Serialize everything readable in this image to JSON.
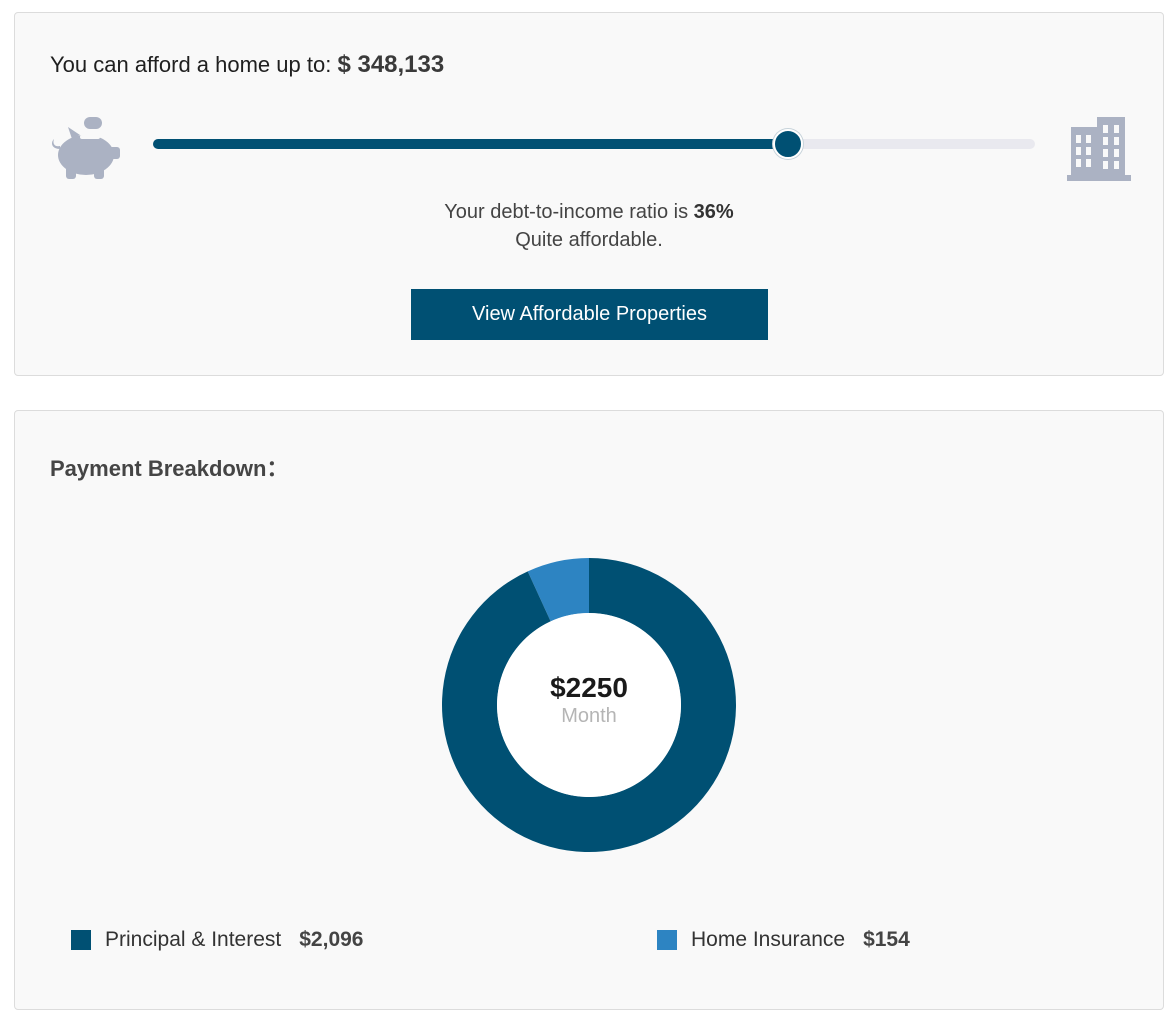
{
  "affordability": {
    "title": "You can afford a home up to:",
    "amount": "$ 348,133",
    "slider_value": 0.72,
    "dti_prefix": "Your debt-to-income ratio is",
    "dti_value": "36%",
    "dti_label": "Quite affordable.",
    "cta_label": "View Affordable Properties",
    "left_icon": "piggy-bank-icon",
    "right_icon": "building-icon"
  },
  "breakdown": {
    "title": "Payment Breakdown",
    "title_suffix": "：",
    "total": "$2250",
    "unit": "Month",
    "items": [
      {
        "label": "Principal & Interest",
        "value": "$2,096",
        "amount": 2096,
        "color": "#005073"
      },
      {
        "label": "Home Insurance",
        "value": "$154",
        "amount": 154,
        "color": "#2d84c2"
      }
    ]
  },
  "colors": {
    "primary": "#005073",
    "secondary": "#2d84c2",
    "icon": "#abb2c3",
    "track": "#e9e9ef"
  }
}
